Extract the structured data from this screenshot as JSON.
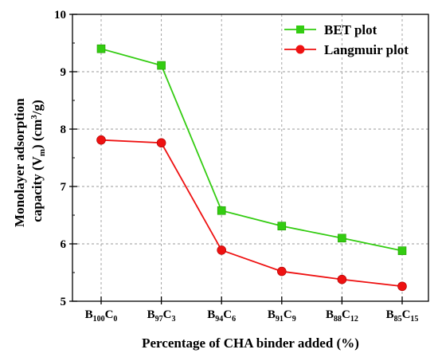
{
  "chart_data": {
    "type": "line",
    "title": "",
    "xlabel": "Percentage of CHA binder added (%)",
    "ylabel": {
      "line1": "Monolayer adsorption",
      "line2_prefix": "capacity (V",
      "line2_sub": "m",
      "line2_mid": ") (cm",
      "line2_sup": "3",
      "line2_suffix": "/g)"
    },
    "categories": [
      {
        "base": "B",
        "sub1": "100",
        "mid": "C",
        "sub2": "0"
      },
      {
        "base": "B",
        "sub1": "97",
        "mid": "C",
        "sub2": "3"
      },
      {
        "base": "B",
        "sub1": "94",
        "mid": "C",
        "sub2": "6"
      },
      {
        "base": "B",
        "sub1": "91",
        "mid": "C",
        "sub2": "9"
      },
      {
        "base": "B",
        "sub1": "88",
        "mid": "C",
        "sub2": "12"
      },
      {
        "base": "B",
        "sub1": "85",
        "mid": "C",
        "sub2": "15"
      }
    ],
    "ylim": [
      5,
      10
    ],
    "yticks": [
      "5",
      "6",
      "7",
      "8",
      "9",
      "10"
    ],
    "grid": true,
    "legend_position": "top-right",
    "series": [
      {
        "name": "BET plot",
        "values": [
          9.4,
          9.11,
          6.58,
          6.31,
          6.1,
          5.88
        ],
        "color": "#33cc11",
        "marker": "square"
      },
      {
        "name": "Langmuir plot",
        "values": [
          7.81,
          7.76,
          5.89,
          5.52,
          5.38,
          5.26
        ],
        "color": "#ee1111",
        "marker": "circle"
      }
    ]
  }
}
